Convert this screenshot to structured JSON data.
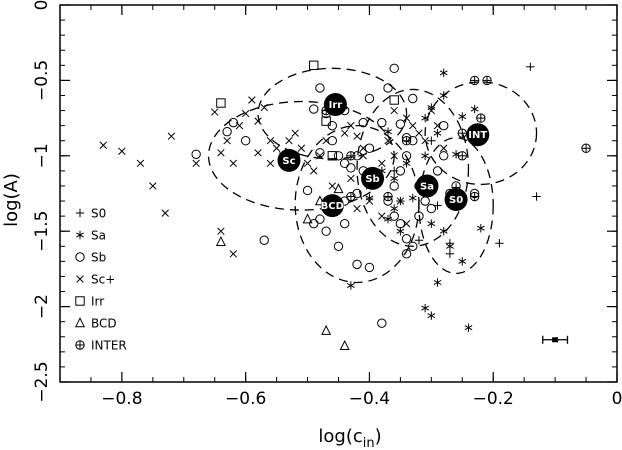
{
  "chart_data": {
    "type": "scatter",
    "xlabel_main": "log(c",
    "xlabel_sub": "in",
    "xlabel_close": ")",
    "ylabel": "log(A)",
    "xlim": [
      -0.9,
      0
    ],
    "ylim": [
      -2.5,
      0
    ],
    "xticks": [
      -0.8,
      -0.6,
      -0.4,
      -0.2,
      0
    ],
    "yticks": [
      0,
      -0.5,
      -1,
      -1.5,
      -2,
      -2.5
    ],
    "xtick_labels": [
      "−0.8",
      "−0.6",
      "−0.4",
      "−0.2",
      "0"
    ],
    "ytick_labels": [
      "0",
      "−0.5",
      "−1",
      "−1.5",
      "−2",
      "−2.5"
    ],
    "legend_position": "lower-left",
    "series": [
      {
        "name": "S0",
        "marker": "plus",
        "points": [
          [
            -0.14,
            -0.41
          ],
          [
            -0.13,
            -1.27
          ],
          [
            -0.19,
            -1.58
          ],
          [
            -0.27,
            -1.58
          ],
          [
            -0.27,
            -1.65
          ],
          [
            -0.32,
            -1.56
          ],
          [
            -0.3,
            -0.9
          ],
          [
            -0.29,
            -1.33
          ],
          [
            -0.35,
            -1.3
          ],
          [
            -0.36,
            -1.1
          ],
          [
            -0.26,
            -1.21
          ]
        ]
      },
      {
        "name": "Sa",
        "marker": "asterisk",
        "points": [
          [
            -0.28,
            -0.45
          ],
          [
            -0.28,
            -0.6
          ],
          [
            -0.3,
            -0.68
          ],
          [
            -0.31,
            -0.75
          ],
          [
            -0.29,
            -0.85
          ],
          [
            -0.25,
            -0.74
          ],
          [
            -0.23,
            -0.69
          ],
          [
            -0.22,
            -0.88
          ],
          [
            -0.26,
            -0.99
          ],
          [
            -0.31,
            -1.0
          ],
          [
            -0.34,
            -1.05
          ],
          [
            -0.36,
            -1.15
          ],
          [
            -0.32,
            -1.2
          ],
          [
            -0.33,
            -1.28
          ],
          [
            -0.36,
            -1.35
          ],
          [
            -0.37,
            -1.42
          ],
          [
            -0.35,
            -1.5
          ],
          [
            -0.3,
            -1.45
          ],
          [
            -0.28,
            -1.5
          ],
          [
            -0.22,
            -1.48
          ],
          [
            -0.27,
            -1.6
          ],
          [
            -0.25,
            -1.7
          ],
          [
            -0.29,
            -1.84
          ],
          [
            -0.31,
            -2.01
          ],
          [
            -0.3,
            -2.06
          ],
          [
            -0.24,
            -2.14
          ],
          [
            -0.43,
            -1.86
          ],
          [
            -0.4,
            -1.28
          ],
          [
            -0.38,
            -1.1
          ],
          [
            -0.37,
            -0.84
          ]
        ]
      },
      {
        "name": "Sb",
        "marker": "circle",
        "points": [
          [
            -0.68,
            -0.99
          ],
          [
            -0.63,
            -0.84
          ],
          [
            -0.62,
            -0.78
          ],
          [
            -0.6,
            -0.9
          ],
          [
            -0.57,
            -1.56
          ],
          [
            -0.5,
            -1.23
          ],
          [
            -0.52,
            -1.0
          ],
          [
            -0.48,
            -0.98
          ],
          [
            -0.46,
            -0.8
          ],
          [
            -0.48,
            -0.55
          ],
          [
            -0.49,
            -0.69
          ],
          [
            -0.47,
            -0.72
          ],
          [
            -0.46,
            -0.9
          ],
          [
            -0.45,
            -1.0
          ],
          [
            -0.44,
            -1.05
          ],
          [
            -0.43,
            -1.08
          ],
          [
            -0.42,
            -1.0
          ],
          [
            -0.41,
            -1.1
          ],
          [
            -0.4,
            -0.95
          ],
          [
            -0.41,
            -0.78
          ],
          [
            -0.4,
            -0.62
          ],
          [
            -0.38,
            -0.78
          ],
          [
            -0.36,
            -0.42
          ],
          [
            -0.37,
            -0.55
          ],
          [
            -0.35,
            -0.79
          ],
          [
            -0.34,
            -0.88
          ],
          [
            -0.33,
            -0.9
          ],
          [
            -0.34,
            -1.0
          ],
          [
            -0.35,
            -1.1
          ],
          [
            -0.36,
            -1.2
          ],
          [
            -0.37,
            -1.3
          ],
          [
            -0.36,
            -1.4
          ],
          [
            -0.35,
            -1.45
          ],
          [
            -0.34,
            -1.55
          ],
          [
            -0.33,
            -1.6
          ],
          [
            -0.34,
            -1.65
          ],
          [
            -0.32,
            -1.4
          ],
          [
            -0.31,
            -1.3
          ],
          [
            -0.3,
            -1.2
          ],
          [
            -0.29,
            -1.1
          ],
          [
            -0.28,
            -1.0
          ],
          [
            -0.27,
            -1.25
          ],
          [
            -0.26,
            -1.2
          ],
          [
            -0.3,
            -1.35
          ],
          [
            -0.38,
            -2.11
          ],
          [
            -0.42,
            -1.72
          ],
          [
            -0.4,
            -1.74
          ],
          [
            -0.45,
            -1.6
          ],
          [
            -0.44,
            -1.45
          ],
          [
            -0.47,
            -1.5
          ],
          [
            -0.48,
            -1.42
          ],
          [
            -0.46,
            -1.3
          ],
          [
            -0.42,
            -1.25
          ],
          [
            -0.44,
            -1.3
          ],
          [
            -0.23,
            -1.25
          ],
          [
            -0.28,
            -0.8
          ],
          [
            -0.44,
            -0.7
          ],
          [
            -0.46,
            -0.64
          ],
          [
            -0.33,
            -0.62
          ],
          [
            -0.49,
            -1.45
          ]
        ]
      },
      {
        "name": "Sc+",
        "marker": "cross",
        "points": [
          [
            -0.83,
            -0.93
          ],
          [
            -0.8,
            -0.97
          ],
          [
            -0.77,
            -1.05
          ],
          [
            -0.75,
            -1.2
          ],
          [
            -0.73,
            -1.38
          ],
          [
            -0.72,
            -0.87
          ],
          [
            -0.68,
            -1.05
          ],
          [
            -0.65,
            -0.71
          ],
          [
            -0.64,
            -1.5
          ],
          [
            -0.62,
            -1.65
          ],
          [
            -0.63,
            -0.9
          ],
          [
            -0.61,
            -0.8
          ],
          [
            -0.6,
            -0.72
          ],
          [
            -0.58,
            -0.77
          ],
          [
            -0.59,
            -0.63
          ],
          [
            -0.57,
            -0.68
          ],
          [
            -0.56,
            -0.9
          ],
          [
            -0.55,
            -0.95
          ],
          [
            -0.54,
            -1.0
          ],
          [
            -0.53,
            -0.9
          ],
          [
            -0.52,
            -0.85
          ],
          [
            -0.51,
            -0.95
          ],
          [
            -0.5,
            -1.05
          ],
          [
            -0.49,
            -1.1
          ],
          [
            -0.48,
            -1.0
          ],
          [
            -0.47,
            -0.9
          ],
          [
            -0.46,
            -1.2
          ],
          [
            -0.45,
            -1.35
          ],
          [
            -0.44,
            -0.85
          ],
          [
            -0.43,
            -0.8
          ],
          [
            -0.42,
            -0.87
          ],
          [
            -0.41,
            -0.95
          ],
          [
            -0.43,
            -1.15
          ],
          [
            -0.42,
            -1.35
          ],
          [
            -0.4,
            -1.2
          ],
          [
            -0.38,
            -1.05
          ],
          [
            -0.37,
            -0.9
          ],
          [
            -0.36,
            -1.0
          ],
          [
            -0.35,
            -1.3
          ],
          [
            -0.34,
            -1.45
          ],
          [
            -0.36,
            -0.7
          ],
          [
            -0.34,
            -0.75
          ],
          [
            -0.33,
            -0.8
          ],
          [
            -0.32,
            -0.85
          ],
          [
            -0.31,
            -0.9
          ],
          [
            -0.3,
            -0.7
          ],
          [
            -0.29,
            -0.8
          ],
          [
            -0.28,
            -0.95
          ],
          [
            -0.64,
            -0.98
          ],
          [
            -0.56,
            -1.05
          ],
          [
            -0.62,
            -1.05
          ],
          [
            -0.58,
            -0.98
          ],
          [
            -0.38,
            -1.4
          ],
          [
            -0.4,
            -1.3
          ],
          [
            -0.41,
            -1.0
          ]
        ]
      },
      {
        "name": "Irr",
        "marker": "square",
        "points": [
          [
            -0.49,
            -0.4
          ],
          [
            -0.64,
            -0.65
          ],
          [
            -0.36,
            -0.63
          ],
          [
            -0.46,
            -1.0
          ],
          [
            -0.47,
            -0.77
          ]
        ]
      },
      {
        "name": "BCD",
        "marker": "triangle",
        "points": [
          [
            -0.47,
            -2.16
          ],
          [
            -0.44,
            -2.26
          ],
          [
            -0.64,
            -1.57
          ],
          [
            -0.5,
            -1.42
          ],
          [
            -0.45,
            -1.22
          ],
          [
            -0.48,
            -1.3
          ]
        ]
      },
      {
        "name": "INTER",
        "marker": "circleplus",
        "points": [
          [
            -0.21,
            -0.5
          ],
          [
            -0.23,
            -0.5
          ],
          [
            -0.05,
            -0.95
          ],
          [
            -0.23,
            -1.27
          ],
          [
            -0.32,
            -1.2
          ],
          [
            -0.25,
            -1.0
          ],
          [
            -0.37,
            -1.27
          ],
          [
            -0.43,
            -1.27
          ],
          [
            -0.47,
            -0.7
          ],
          [
            -0.22,
            -0.75
          ],
          [
            -0.25,
            -0.85
          ],
          [
            -0.34,
            -0.9
          ],
          [
            -0.43,
            -1.0
          ]
        ]
      }
    ],
    "means": [
      {
        "label": "Irr",
        "x": -0.455,
        "y": -0.66
      },
      {
        "label": "Sc",
        "x": -0.53,
        "y": -1.03
      },
      {
        "label": "BCD",
        "x": -0.46,
        "y": -1.33
      },
      {
        "label": "Sb",
        "x": -0.395,
        "y": -1.15
      },
      {
        "label": "Sa",
        "x": -0.307,
        "y": -1.2
      },
      {
        "label": "S0",
        "x": -0.26,
        "y": -1.29
      },
      {
        "label": "INT",
        "x": -0.225,
        "y": -0.86
      }
    ],
    "ellipses": [
      {
        "cx": -0.46,
        "cy": -0.72,
        "rx": 0.12,
        "ry": 0.3
      },
      {
        "cx": -0.51,
        "cy": -1.0,
        "rx": 0.15,
        "ry": 0.36
      },
      {
        "cx": -0.42,
        "cy": -1.32,
        "rx": 0.1,
        "ry": 0.52
      },
      {
        "cx": -0.33,
        "cy": -1.08,
        "rx": 0.09,
        "ry": 0.52
      },
      {
        "cx": -0.26,
        "cy": -1.33,
        "rx": 0.06,
        "ry": 0.45
      },
      {
        "cx": -0.22,
        "cy": -0.85,
        "rx": 0.09,
        "ry": 0.34
      }
    ],
    "error_bar": {
      "x": -0.1,
      "y": -2.22,
      "xerr": 0.02
    }
  }
}
